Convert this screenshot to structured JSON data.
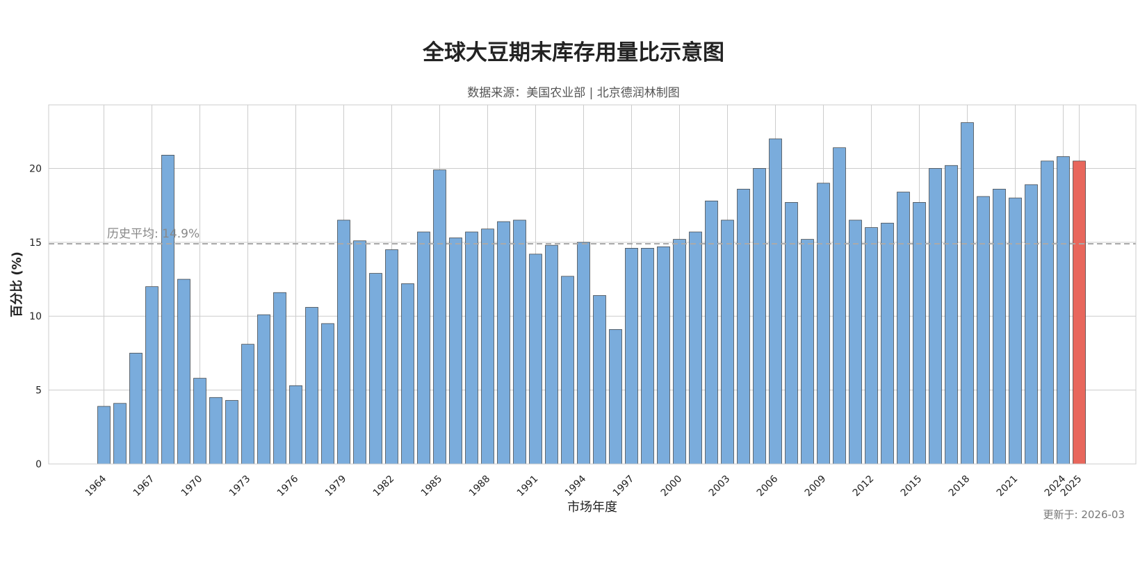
{
  "title": "全球大豆期末库存用量比示意图",
  "subtitle": "数据来源：美国农业部 | 北京德润林制图",
  "updated": "更新于: 2026-03",
  "colors": {
    "bar": "#7aacdc",
    "bar_highlight": "#e8675c",
    "bar_edge": "#3a3a3a",
    "grid": "#cccccc",
    "mean_line": "#aaaaaa",
    "mean_label": "#888888"
  },
  "chart_data": {
    "type": "bar",
    "title": "全球大豆期末库存用量比示意图",
    "xlabel": "市场年度",
    "ylabel": "百分比 (%)",
    "ylim": [
      0,
      24.3
    ],
    "yticks": [
      0,
      5,
      10,
      15,
      20
    ],
    "grid": true,
    "categories": [
      "1964",
      "1965",
      "1966",
      "1967",
      "1968",
      "1969",
      "1970",
      "1971",
      "1972",
      "1973",
      "1974",
      "1975",
      "1976",
      "1977",
      "1978",
      "1979",
      "1980",
      "1981",
      "1982",
      "1983",
      "1984",
      "1985",
      "1986",
      "1987",
      "1988",
      "1989",
      "1990",
      "1991",
      "1992",
      "1993",
      "1994",
      "1995",
      "1996",
      "1997",
      "1998",
      "1999",
      "2000",
      "2001",
      "2002",
      "2003",
      "2004",
      "2005",
      "2006",
      "2007",
      "2008",
      "2009",
      "2010",
      "2011",
      "2012",
      "2013",
      "2014",
      "2015",
      "2016",
      "2017",
      "2018",
      "2019",
      "2020",
      "2021",
      "2022",
      "2023",
      "2024",
      "2025"
    ],
    "xtick_labels": [
      "1964",
      "1967",
      "1970",
      "1973",
      "1976",
      "1979",
      "1982",
      "1985",
      "1988",
      "1991",
      "1994",
      "1997",
      "2000",
      "2003",
      "2006",
      "2009",
      "2012",
      "2015",
      "2018",
      "2021",
      "2024",
      "2025"
    ],
    "values": [
      3.9,
      4.1,
      7.5,
      12.0,
      20.9,
      12.5,
      5.8,
      4.5,
      4.3,
      8.1,
      10.1,
      11.6,
      5.3,
      10.6,
      9.5,
      16.5,
      15.1,
      12.9,
      14.5,
      12.2,
      15.7,
      19.9,
      15.3,
      15.7,
      15.9,
      16.4,
      16.5,
      14.2,
      14.8,
      12.7,
      15.0,
      11.4,
      9.1,
      14.6,
      14.6,
      14.7,
      15.2,
      15.7,
      17.8,
      16.5,
      18.6,
      20.0,
      22.0,
      17.7,
      15.2,
      19.0,
      21.4,
      16.5,
      16.0,
      16.3,
      18.4,
      17.7,
      20.0,
      20.2,
      23.1,
      18.1,
      18.6,
      18.0,
      18.9,
      20.5,
      20.8,
      20.5
    ],
    "highlight": [
      "2025"
    ],
    "mean": 14.9,
    "mean_label": "历史平均: 14.9%"
  }
}
